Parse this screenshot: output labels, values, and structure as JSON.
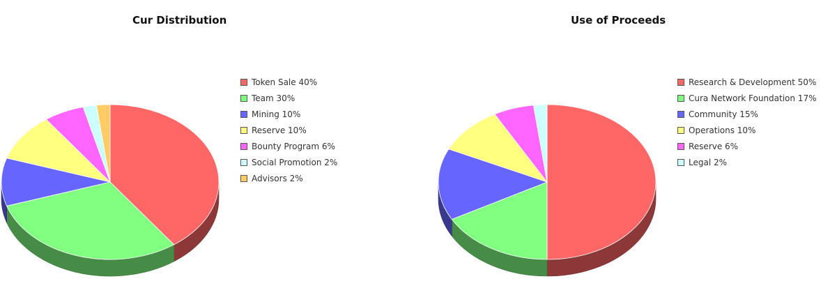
{
  "chart_data": [
    {
      "type": "pie",
      "title": "Cur Distribution",
      "slices": [
        {
          "label": "Token Sale 40%",
          "value": 40,
          "color": "#ff6666"
        },
        {
          "label": "Team 30%",
          "value": 30,
          "color": "#80ff80"
        },
        {
          "label": "Mining 10%",
          "value": 10,
          "color": "#6666ff"
        },
        {
          "label": "Reserve 10%",
          "value": 10,
          "color": "#ffff80"
        },
        {
          "label": "Bounty Program 6%",
          "value": 6,
          "color": "#ff66ff"
        },
        {
          "label": "Social Promotion 2%",
          "value": 2,
          "color": "#ccffff"
        },
        {
          "label": "Advisors 2%",
          "value": 2,
          "color": "#ffcc66"
        }
      ],
      "legend_position": "right",
      "style": "3d"
    },
    {
      "type": "pie",
      "title": "Use of Proceeds",
      "slices": [
        {
          "label": "Research & Development 50%",
          "value": 50,
          "color": "#ff6666"
        },
        {
          "label": "Cura Network Foundation 17%",
          "value": 17,
          "color": "#80ff80"
        },
        {
          "label": "Community 15%",
          "value": 15,
          "color": "#6666ff"
        },
        {
          "label": "Operations 10%",
          "value": 10,
          "color": "#ffff80"
        },
        {
          "label": "Reserve 6%",
          "value": 6,
          "color": "#ff66ff"
        },
        {
          "label": "Legal 2%",
          "value": 2,
          "color": "#ccffff"
        }
      ],
      "legend_position": "right",
      "style": "3d"
    }
  ]
}
